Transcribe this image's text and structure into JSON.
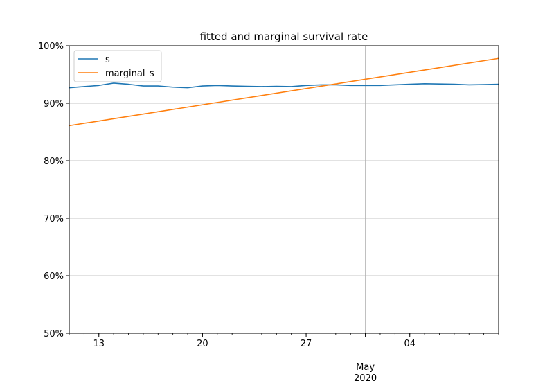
{
  "chart_data": {
    "type": "line",
    "title": "fitted and marginal survival rate",
    "xlabel": "",
    "ylabel": "",
    "x_range": [
      "2020-04-11",
      "2020-05-10"
    ],
    "ylim": [
      0.5,
      1.0
    ],
    "yticks": [
      {
        "value": 0.5,
        "label": "50%"
      },
      {
        "value": 0.6,
        "label": "60%"
      },
      {
        "value": 0.7,
        "label": "70%"
      },
      {
        "value": 0.8,
        "label": "80%"
      },
      {
        "value": 0.9,
        "label": "90%"
      },
      {
        "value": 1.0,
        "label": "100%"
      }
    ],
    "xticks_major": [
      {
        "date": "2020-04-13",
        "label": "13"
      },
      {
        "date": "2020-04-20",
        "label": "20"
      },
      {
        "date": "2020-04-27",
        "label": "27"
      },
      {
        "date": "2020-05-01",
        "label": "May",
        "sublabel": "2020"
      },
      {
        "date": "2020-05-04",
        "label": "04"
      }
    ],
    "grid": true,
    "gridlines_x": [
      "2020-05-01"
    ],
    "legend_position": "upper-left",
    "series": [
      {
        "name": "s",
        "color": "#1f77b4",
        "points": [
          {
            "x": "2020-04-11",
            "y": 0.927
          },
          {
            "x": "2020-04-12",
            "y": 0.929
          },
          {
            "x": "2020-04-13",
            "y": 0.931
          },
          {
            "x": "2020-04-14",
            "y": 0.935
          },
          {
            "x": "2020-04-15",
            "y": 0.933
          },
          {
            "x": "2020-04-16",
            "y": 0.93
          },
          {
            "x": "2020-04-17",
            "y": 0.93
          },
          {
            "x": "2020-04-18",
            "y": 0.928
          },
          {
            "x": "2020-04-19",
            "y": 0.927
          },
          {
            "x": "2020-04-20",
            "y": 0.93
          },
          {
            "x": "2020-04-21",
            "y": 0.931
          },
          {
            "x": "2020-04-22",
            "y": 0.93
          },
          {
            "x": "2020-04-23",
            "y": 0.9295
          },
          {
            "x": "2020-04-24",
            "y": 0.929
          },
          {
            "x": "2020-04-25",
            "y": 0.9295
          },
          {
            "x": "2020-04-26",
            "y": 0.929
          },
          {
            "x": "2020-04-27",
            "y": 0.931
          },
          {
            "x": "2020-04-28",
            "y": 0.932
          },
          {
            "x": "2020-04-29",
            "y": 0.932
          },
          {
            "x": "2020-04-30",
            "y": 0.931
          },
          {
            "x": "2020-05-01",
            "y": 0.931
          },
          {
            "x": "2020-05-02",
            "y": 0.931
          },
          {
            "x": "2020-05-03",
            "y": 0.932
          },
          {
            "x": "2020-05-04",
            "y": 0.933
          },
          {
            "x": "2020-05-05",
            "y": 0.934
          },
          {
            "x": "2020-05-06",
            "y": 0.9335
          },
          {
            "x": "2020-05-07",
            "y": 0.933
          },
          {
            "x": "2020-05-08",
            "y": 0.932
          },
          {
            "x": "2020-05-09",
            "y": 0.9325
          },
          {
            "x": "2020-05-10",
            "y": 0.933
          }
        ]
      },
      {
        "name": "marginal_s",
        "color": "#ff7f0e",
        "points": [
          {
            "x": "2020-04-11",
            "y": 0.861
          },
          {
            "x": "2020-05-10",
            "y": 0.978
          }
        ]
      }
    ]
  }
}
